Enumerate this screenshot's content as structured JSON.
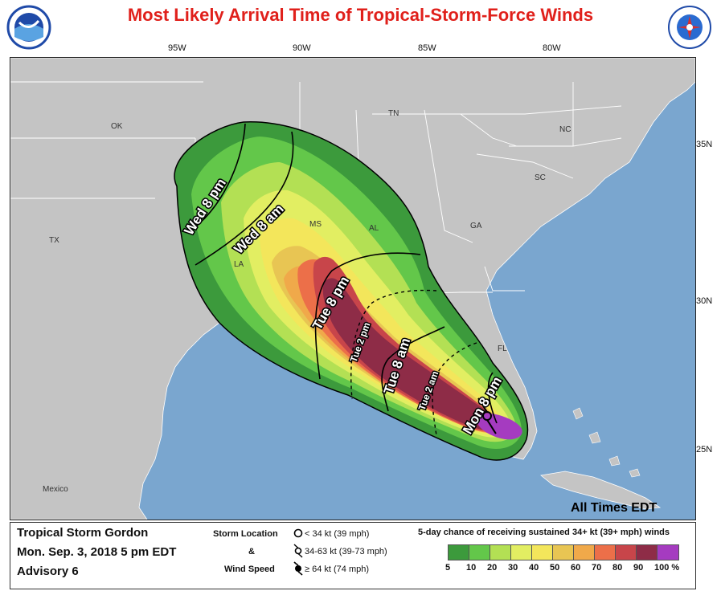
{
  "title": "Most Likely Arrival Time of Tropical-Storm-Force Winds",
  "logos": {
    "left": "noaa-logo",
    "right": "nws-logo"
  },
  "longitude_labels": [
    "95W",
    "90W",
    "85W",
    "80W"
  ],
  "latitude_labels": [
    "35N",
    "30N",
    "25N"
  ],
  "state_labels": [
    "OK",
    "TN",
    "NC",
    "SC",
    "MS",
    "AL",
    "GA",
    "TX",
    "LA",
    "FL"
  ],
  "country_labels": [
    "Mexico"
  ],
  "time_labels": {
    "wed_8pm": "Wed 8 pm",
    "wed_8am": "Wed 8 am",
    "tue_8pm": "Tue 8 pm",
    "tue_2pm": "Tue 2 pm",
    "tue_8am": "Tue 8 am",
    "tue_2am": "Tue 2 am",
    "mon_8pm": "Mon 8 pm"
  },
  "all_times": "All Times EDT",
  "storm": {
    "name": "Tropical Storm Gordon",
    "date": "Mon. Sep. 3, 2018  5 pm EDT",
    "advisory": "Advisory 6"
  },
  "legend": {
    "storm_location_label": "Storm Location",
    "and": "&",
    "wind_speed_label": "Wind Speed",
    "categories": [
      {
        "icon": "circle-icon",
        "text": "< 34 kt (39 mph)"
      },
      {
        "icon": "tropical-storm-icon",
        "text": "34-63 kt (39-73 mph)"
      },
      {
        "icon": "hurricane-icon",
        "text": "≥ 64 kt (74 mph)"
      }
    ],
    "scale_title": "5-day chance of receiving sustained 34+ kt (39+ mph) winds",
    "scale_ticks": [
      "5",
      "10",
      "20",
      "30",
      "40",
      "50",
      "60",
      "70",
      "80",
      "90",
      "100 %"
    ],
    "scale_colors": [
      "#3c9a3c",
      "#63c74a",
      "#b3e054",
      "#e2ee62",
      "#f3e65b",
      "#e8c553",
      "#f0a94a",
      "#ec6f49",
      "#c8454a",
      "#8e2c47",
      "#a53bc0"
    ]
  },
  "colors": {
    "ocean": "#7aa6cf",
    "land": "#c4c4c4",
    "border": "#ffffff",
    "title": "#e0201b"
  }
}
